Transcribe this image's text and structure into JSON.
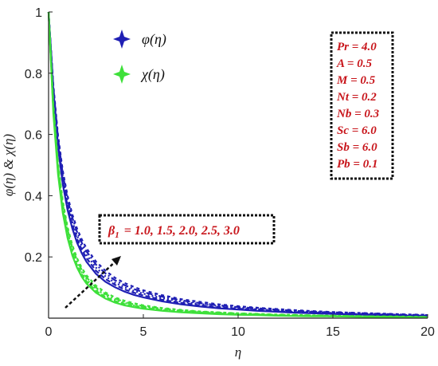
{
  "chart_data": {
    "type": "line",
    "xlabel": "η",
    "ylabel": "φ(η) & χ(η)",
    "xlim": [
      0,
      20
    ],
    "ylim": [
      0,
      1
    ],
    "x_ticks": [
      "0",
      "5",
      "10",
      "15",
      "20"
    ],
    "y_ticks": [
      "0.2",
      "0.4",
      "0.6",
      "0.8",
      "1"
    ],
    "grid": false,
    "legend_position": "top-left",
    "legend": [
      {
        "label": "φ(η)",
        "color": "#1f1fb4",
        "marker": "four-point-star"
      },
      {
        "label": "χ(η)",
        "color": "#3ee03a",
        "marker": "four-point-star"
      }
    ],
    "parameters": [
      "Pr = 4.0",
      "A = 0.5",
      "M = 0.5",
      "Nt = 0.2",
      "Nb = 0.3",
      "Sc = 6.0",
      "Sb = 6.0",
      "Pb = 0.1"
    ],
    "annotation": {
      "symbol": "β",
      "subscript": "1",
      "values_text": "= 1.0, 1.5, 2.0, 2.5, 3.0",
      "arrow": "increasing"
    },
    "x": [
      0,
      0.25,
      0.5,
      0.75,
      1,
      1.25,
      1.5,
      1.75,
      2,
      2.5,
      3,
      3.5,
      4,
      4.5,
      5,
      6,
      7,
      8,
      9,
      10,
      11,
      12,
      13,
      14,
      15,
      16,
      17,
      18,
      19,
      20
    ],
    "series": [
      {
        "name": "φ(η)",
        "beta": 1.0,
        "color": "#1f1fb4",
        "values": [
          1.0,
          0.733,
          0.557,
          0.438,
          0.354,
          0.293,
          0.247,
          0.212,
          0.184,
          0.145,
          0.119,
          0.101,
          0.087,
          0.076,
          0.068,
          0.055,
          0.045,
          0.038,
          0.032,
          0.028,
          0.024,
          0.021,
          0.018,
          0.016,
          0.014,
          0.012,
          0.011,
          0.009,
          0.008,
          0.007
        ]
      },
      {
        "name": "φ(η)",
        "beta": 1.5,
        "color": "#1f1fb4",
        "values": [
          1.0,
          0.74,
          0.567,
          0.449,
          0.366,
          0.305,
          0.259,
          0.224,
          0.196,
          0.155,
          0.128,
          0.109,
          0.094,
          0.083,
          0.074,
          0.06,
          0.05,
          0.042,
          0.036,
          0.031,
          0.027,
          0.023,
          0.02,
          0.018,
          0.016,
          0.014,
          0.012,
          0.011,
          0.009,
          0.008
        ]
      },
      {
        "name": "φ(η)",
        "beta": 2.0,
        "color": "#1f1fb4",
        "values": [
          1.0,
          0.747,
          0.577,
          0.46,
          0.377,
          0.316,
          0.27,
          0.235,
          0.207,
          0.165,
          0.137,
          0.116,
          0.101,
          0.089,
          0.08,
          0.065,
          0.054,
          0.046,
          0.039,
          0.034,
          0.029,
          0.026,
          0.022,
          0.02,
          0.017,
          0.015,
          0.013,
          0.012,
          0.01,
          0.009
        ]
      },
      {
        "name": "φ(η)",
        "beta": 2.5,
        "color": "#1f1fb4",
        "values": [
          1.0,
          0.754,
          0.587,
          0.471,
          0.388,
          0.328,
          0.282,
          0.246,
          0.218,
          0.175,
          0.146,
          0.124,
          0.108,
          0.095,
          0.085,
          0.07,
          0.058,
          0.049,
          0.042,
          0.036,
          0.032,
          0.028,
          0.024,
          0.021,
          0.019,
          0.017,
          0.015,
          0.013,
          0.011,
          0.01
        ]
      },
      {
        "name": "φ(η)",
        "beta": 3.0,
        "color": "#1f1fb4",
        "values": [
          1.0,
          0.761,
          0.597,
          0.482,
          0.4,
          0.339,
          0.293,
          0.257,
          0.228,
          0.185,
          0.155,
          0.132,
          0.115,
          0.102,
          0.091,
          0.075,
          0.062,
          0.053,
          0.045,
          0.039,
          0.034,
          0.03,
          0.026,
          0.023,
          0.02,
          0.018,
          0.016,
          0.014,
          0.012,
          0.011
        ]
      },
      {
        "name": "χ(η)",
        "beta": 1.0,
        "color": "#3ee03a",
        "values": [
          1.0,
          0.668,
          0.469,
          0.344,
          0.262,
          0.205,
          0.165,
          0.135,
          0.113,
          0.083,
          0.064,
          0.051,
          0.042,
          0.036,
          0.031,
          0.024,
          0.019,
          0.016,
          0.013,
          0.011,
          0.01,
          0.008,
          0.007,
          0.006,
          0.006,
          0.005,
          0.004,
          0.004,
          0.003,
          0.003
        ]
      },
      {
        "name": "χ(η)",
        "beta": 1.5,
        "color": "#3ee03a",
        "values": [
          1.0,
          0.676,
          0.478,
          0.354,
          0.271,
          0.214,
          0.173,
          0.143,
          0.12,
          0.089,
          0.069,
          0.056,
          0.046,
          0.039,
          0.034,
          0.026,
          0.021,
          0.018,
          0.015,
          0.013,
          0.011,
          0.009,
          0.008,
          0.007,
          0.006,
          0.006,
          0.005,
          0.004,
          0.004,
          0.003
        ]
      },
      {
        "name": "χ(η)",
        "beta": 2.0,
        "color": "#3ee03a",
        "values": [
          1.0,
          0.684,
          0.488,
          0.364,
          0.28,
          0.222,
          0.181,
          0.15,
          0.127,
          0.095,
          0.074,
          0.06,
          0.05,
          0.042,
          0.037,
          0.029,
          0.023,
          0.019,
          0.016,
          0.014,
          0.012,
          0.01,
          0.009,
          0.008,
          0.007,
          0.006,
          0.005,
          0.005,
          0.004,
          0.004
        ]
      },
      {
        "name": "χ(η)",
        "beta": 2.5,
        "color": "#3ee03a",
        "values": [
          1.0,
          0.692,
          0.497,
          0.373,
          0.289,
          0.231,
          0.189,
          0.157,
          0.133,
          0.1,
          0.079,
          0.064,
          0.053,
          0.045,
          0.039,
          0.031,
          0.025,
          0.021,
          0.018,
          0.015,
          0.013,
          0.011,
          0.01,
          0.009,
          0.008,
          0.007,
          0.006,
          0.005,
          0.004,
          0.004
        ]
      },
      {
        "name": "χ(η)",
        "beta": 3.0,
        "color": "#3ee03a",
        "values": [
          1.0,
          0.7,
          0.507,
          0.383,
          0.298,
          0.239,
          0.196,
          0.164,
          0.14,
          0.106,
          0.084,
          0.068,
          0.057,
          0.049,
          0.042,
          0.033,
          0.027,
          0.022,
          0.019,
          0.016,
          0.014,
          0.012,
          0.011,
          0.009,
          0.008,
          0.007,
          0.006,
          0.006,
          0.005,
          0.004
        ]
      }
    ]
  }
}
